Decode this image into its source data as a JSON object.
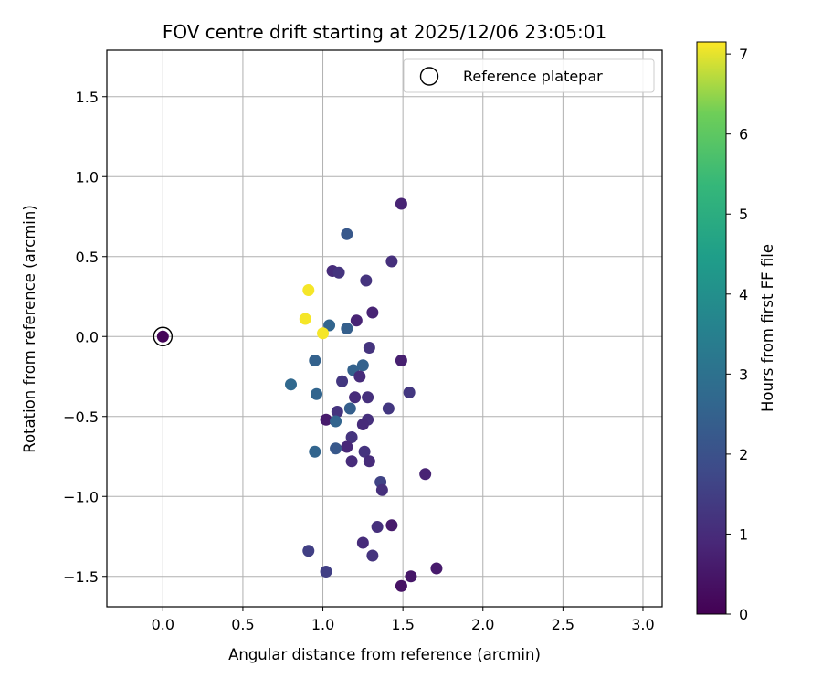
{
  "chart_data": {
    "type": "scatter",
    "title": "FOV centre drift starting at 2025/12/06 23:05:01",
    "xlabel": "Angular distance from reference (arcmin)",
    "ylabel": "Rotation from reference (arcmin)",
    "xlim": [
      -0.35,
      3.12
    ],
    "ylim": [
      -1.69,
      1.79
    ],
    "xticks": [
      0.0,
      0.5,
      1.0,
      1.5,
      2.0,
      2.5,
      3.0
    ],
    "xtick_labels": [
      "0.0",
      "0.5",
      "1.0",
      "1.5",
      "2.0",
      "2.5",
      "3.0"
    ],
    "yticks": [
      -1.5,
      -1.0,
      -0.5,
      0.0,
      0.5,
      1.0,
      1.5
    ],
    "ytick_labels": [
      "−1.5",
      "−1.0",
      "−0.5",
      "0.0",
      "0.5",
      "1.0",
      "1.5"
    ],
    "grid": true,
    "legend": {
      "placement": "top-right",
      "entries": [
        "Reference platepar"
      ]
    },
    "reference_point": {
      "x": 0.0,
      "y": 0.0,
      "label": "Reference platepar"
    },
    "colorbar": {
      "label": "Hours from first FF file",
      "min": 0,
      "max": 7.15,
      "ticks": [
        0,
        1,
        2,
        3,
        4,
        5,
        6,
        7
      ],
      "tick_labels": [
        "0",
        "1",
        "2",
        "3",
        "4",
        "5",
        "6",
        "7"
      ],
      "colormap": "viridis"
    },
    "points": [
      {
        "x": 0.0,
        "y": 0.0,
        "hours": 0.1
      },
      {
        "x": 1.49,
        "y": 0.83,
        "hours": 0.8
      },
      {
        "x": 1.15,
        "y": 0.64,
        "hours": 2.2
      },
      {
        "x": 1.43,
        "y": 0.47,
        "hours": 1.1
      },
      {
        "x": 1.06,
        "y": 0.41,
        "hours": 1.0
      },
      {
        "x": 1.1,
        "y": 0.4,
        "hours": 1.2
      },
      {
        "x": 1.27,
        "y": 0.35,
        "hours": 1.2
      },
      {
        "x": 0.91,
        "y": 0.29,
        "hours": 7.1
      },
      {
        "x": 1.31,
        "y": 0.15,
        "hours": 0.8
      },
      {
        "x": 0.89,
        "y": 0.11,
        "hours": 7.1
      },
      {
        "x": 1.21,
        "y": 0.1,
        "hours": 0.8
      },
      {
        "x": 1.04,
        "y": 0.07,
        "hours": 2.6
      },
      {
        "x": 1.15,
        "y": 0.05,
        "hours": 2.4
      },
      {
        "x": 1.0,
        "y": 0.02,
        "hours": 7.1
      },
      {
        "x": 1.29,
        "y": -0.07,
        "hours": 1.2
      },
      {
        "x": 0.95,
        "y": -0.15,
        "hours": 2.5
      },
      {
        "x": 1.49,
        "y": -0.15,
        "hours": 0.7
      },
      {
        "x": 1.25,
        "y": -0.18,
        "hours": 2.5
      },
      {
        "x": 1.19,
        "y": -0.21,
        "hours": 2.5
      },
      {
        "x": 1.23,
        "y": -0.25,
        "hours": 1.0
      },
      {
        "x": 1.12,
        "y": -0.28,
        "hours": 1.3
      },
      {
        "x": 0.8,
        "y": -0.3,
        "hours": 2.7
      },
      {
        "x": 1.54,
        "y": -0.35,
        "hours": 1.3
      },
      {
        "x": 0.96,
        "y": -0.36,
        "hours": 2.6
      },
      {
        "x": 1.2,
        "y": -0.38,
        "hours": 1.0
      },
      {
        "x": 1.28,
        "y": -0.38,
        "hours": 1.1
      },
      {
        "x": 1.17,
        "y": -0.45,
        "hours": 2.4
      },
      {
        "x": 1.41,
        "y": -0.45,
        "hours": 1.3
      },
      {
        "x": 1.09,
        "y": -0.47,
        "hours": 1.2
      },
      {
        "x": 1.02,
        "y": -0.52,
        "hours": 0.6
      },
      {
        "x": 1.28,
        "y": -0.52,
        "hours": 1.1
      },
      {
        "x": 1.08,
        "y": -0.53,
        "hours": 2.6
      },
      {
        "x": 1.25,
        "y": -0.55,
        "hours": 1.0
      },
      {
        "x": 1.18,
        "y": -0.63,
        "hours": 1.2
      },
      {
        "x": 1.15,
        "y": -0.69,
        "hours": 0.9
      },
      {
        "x": 1.08,
        "y": -0.7,
        "hours": 2.2
      },
      {
        "x": 0.95,
        "y": -0.72,
        "hours": 2.6
      },
      {
        "x": 1.26,
        "y": -0.72,
        "hours": 1.2
      },
      {
        "x": 1.18,
        "y": -0.78,
        "hours": 1.0
      },
      {
        "x": 1.29,
        "y": -0.78,
        "hours": 1.0
      },
      {
        "x": 1.64,
        "y": -0.86,
        "hours": 0.8
      },
      {
        "x": 1.36,
        "y": -0.91,
        "hours": 1.6
      },
      {
        "x": 1.37,
        "y": -0.96,
        "hours": 1.1
      },
      {
        "x": 1.43,
        "y": -1.18,
        "hours": 0.6
      },
      {
        "x": 1.34,
        "y": -1.19,
        "hours": 1.1
      },
      {
        "x": 1.25,
        "y": -1.29,
        "hours": 1.0
      },
      {
        "x": 0.91,
        "y": -1.34,
        "hours": 1.5
      },
      {
        "x": 1.31,
        "y": -1.37,
        "hours": 1.2
      },
      {
        "x": 1.71,
        "y": -1.45,
        "hours": 0.6
      },
      {
        "x": 1.02,
        "y": -1.47,
        "hours": 1.5
      },
      {
        "x": 1.55,
        "y": -1.5,
        "hours": 0.5
      },
      {
        "x": 1.49,
        "y": -1.56,
        "hours": 0.4
      }
    ]
  }
}
